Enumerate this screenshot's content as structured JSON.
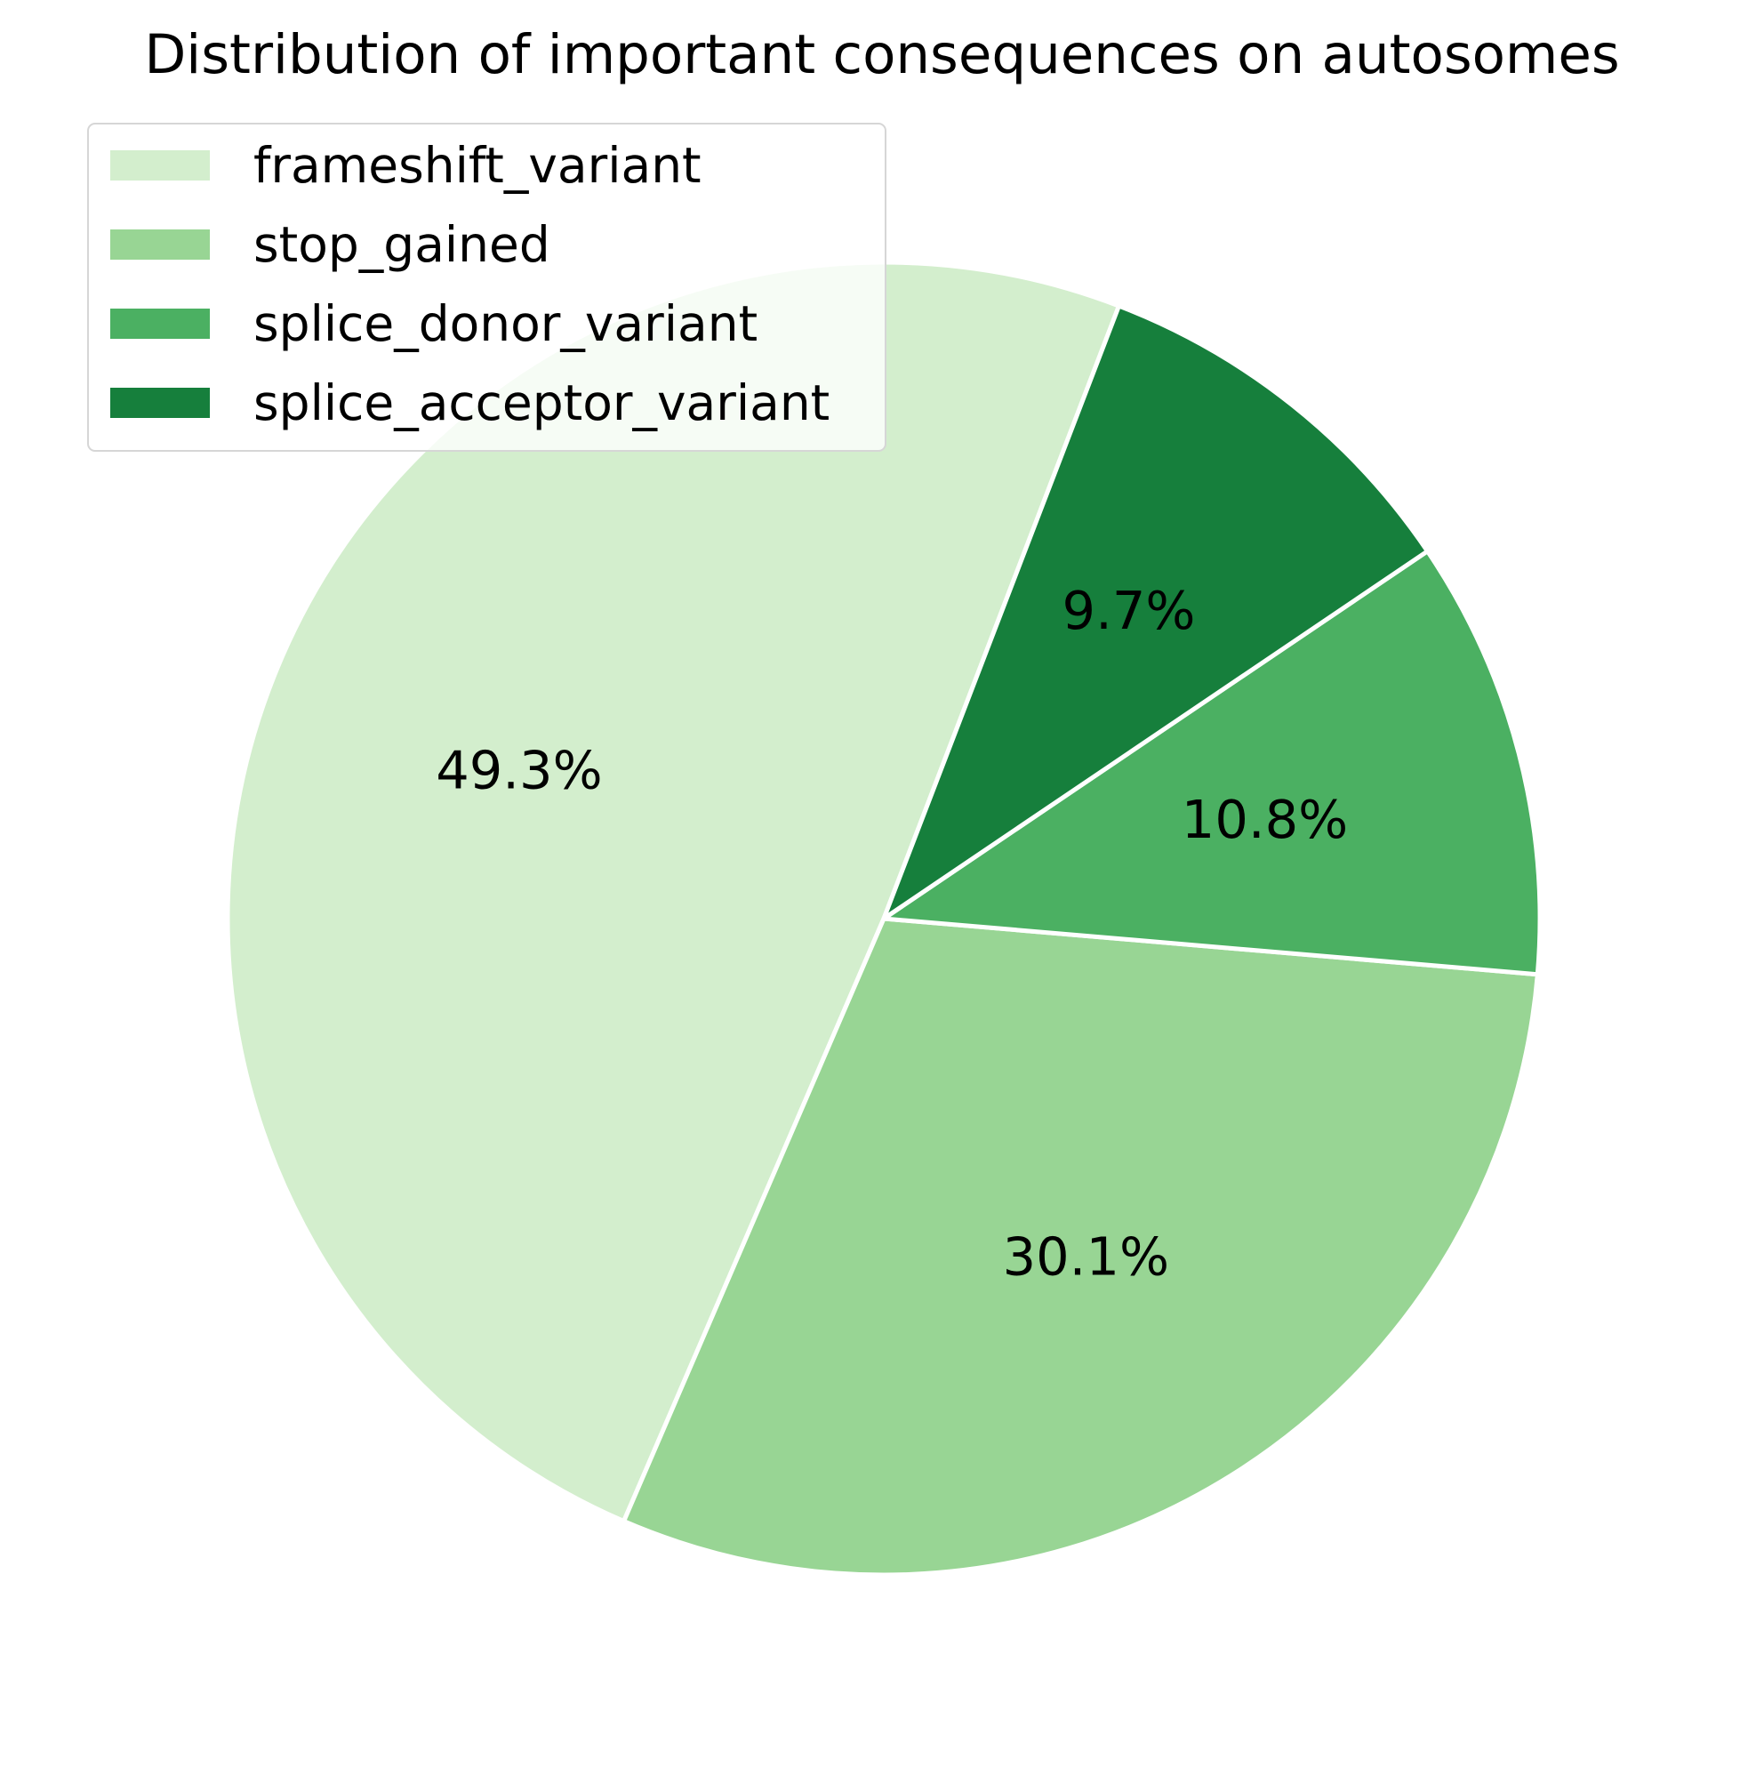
{
  "chart_data": {
    "type": "pie",
    "title": "Distribution of important consequences on autosomes",
    "slices": [
      {
        "label": "frameshift_variant",
        "percent": 49.3,
        "percent_label": "49.3%",
        "color": "#d3eecd"
      },
      {
        "label": "stop_gained",
        "percent": 30.1,
        "percent_label": "30.1%",
        "color": "#98d594"
      },
      {
        "label": "splice_donor_variant",
        "percent": 10.8,
        "percent_label": "10.8%",
        "color": "#4bb062"
      },
      {
        "label": "splice_acceptor_variant",
        "percent": 9.7,
        "percent_label": "9.7%",
        "color": "#167f3c"
      }
    ],
    "start_angle_deg": 69,
    "direction": "counterclockwise",
    "wedge_edge_color": "#ffffff",
    "legend_placement": "upper-left"
  }
}
